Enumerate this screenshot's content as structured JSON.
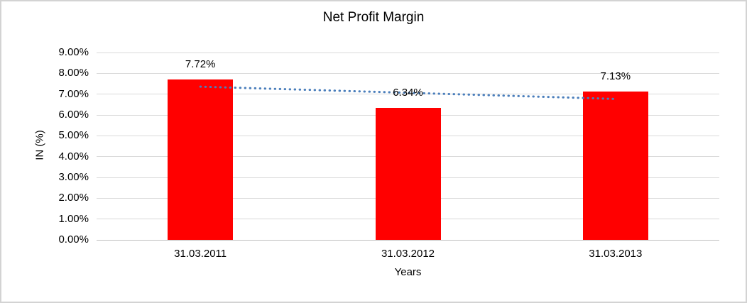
{
  "chart_data": {
    "type": "bar",
    "title": "Net Profit Margin",
    "categories": [
      "31.03.2011",
      "31.03.2012",
      "31.03.2013"
    ],
    "values": [
      7.72,
      6.34,
      7.13
    ],
    "data_labels": [
      "7.72%",
      "6.34%",
      "7.13%"
    ],
    "xlabel": "Years",
    "ylabel": "IN (%)",
    "ylim": [
      0,
      9
    ],
    "ytick_step": 1,
    "ytick_labels": [
      "0.00%",
      "1.00%",
      "2.00%",
      "3.00%",
      "4.00%",
      "5.00%",
      "6.00%",
      "7.00%",
      "8.00%",
      "9.00%"
    ],
    "grid": true,
    "legend": "none",
    "bar_color": "#ff0000",
    "gridline_color": "#d9d9d9",
    "frame_border_color": "#d3d3d3",
    "trendline": {
      "type": "linear",
      "style": "dotted",
      "color": "#4a7ebb",
      "start_value": 7.36,
      "end_value": 6.77
    }
  }
}
